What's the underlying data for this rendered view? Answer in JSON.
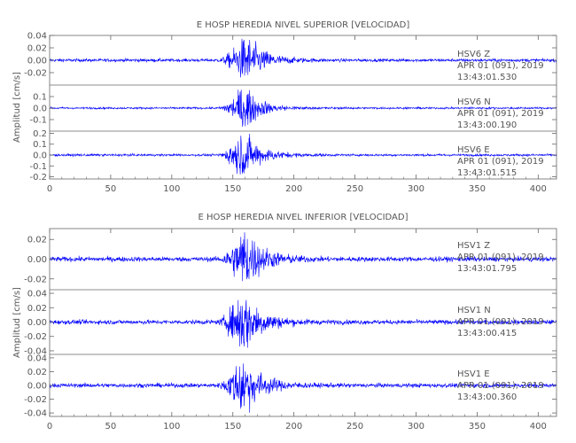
{
  "chart_data": [
    {
      "type": "line",
      "title": "E HOSP HEREDIA NIVEL SUPERIOR [VELOCIDAD]",
      "ylabel": "Amplitud [cm/s]",
      "xlabel": "",
      "xlim": [
        0,
        415
      ],
      "x_ticks": [
        "0",
        "50",
        "100",
        "150",
        "200",
        "250",
        "300",
        "350",
        "400"
      ],
      "line_color": "#0000ff",
      "series": [
        {
          "name": "Z",
          "lines": [
            "HSV6   Z",
            "APR 01 (091), 2019",
            "13:43:01.530"
          ],
          "ylim": [
            -0.04,
            0.04
          ],
          "y_ticks": [
            "0.04",
            "0.02",
            "0.00",
            "-0.02"
          ],
          "peak": 0.036,
          "noise": 0.0012,
          "onset": 137,
          "peak_time": 161
        },
        {
          "name": "N",
          "lines": [
            "HSV6   N",
            "APR 01 (091), 2019",
            "13:43:00.190"
          ],
          "ylim": [
            -0.2,
            0.2
          ],
          "y_ticks": [
            "0.1",
            "0.0",
            "-0.1"
          ],
          "peak": 0.17,
          "noise": 0.004,
          "onset": 137,
          "peak_time": 158
        },
        {
          "name": "E",
          "lines": [
            "HSV6   E",
            "APR 01 (091), 2019",
            "13:43:01.515"
          ],
          "ylim": [
            -0.22,
            0.22
          ],
          "y_ticks": [
            "0.2",
            "0.1",
            "0.0",
            "-0.1",
            "-0.2"
          ],
          "peak": 0.2,
          "noise": 0.005,
          "onset": 137,
          "peak_time": 158
        }
      ]
    },
    {
      "type": "line",
      "title": "E HOSP HEREDIA NIVEL INFERIOR [VELOCIDAD]",
      "ylabel": "Amplitud [cm/s]",
      "xlabel": "",
      "xlim": [
        0,
        415
      ],
      "x_ticks": [
        "0",
        "50",
        "100",
        "150",
        "200",
        "250",
        "300",
        "350",
        "400"
      ],
      "line_color": "#0000ff",
      "series": [
        {
          "name": "Z",
          "lines": [
            "HSV1   Z",
            "APR 01 (091), 2019",
            "13:43:01.795"
          ],
          "ylim": [
            -0.031,
            0.031
          ],
          "y_ticks": [
            "0.02",
            "0.00",
            "-0.02"
          ],
          "peak": 0.029,
          "noise": 0.0012,
          "onset": 137,
          "peak_time": 160
        },
        {
          "name": "N",
          "lines": [
            "HSV1   N",
            "APR 01 (091), 2019",
            "13:43:00.415"
          ],
          "ylim": [
            -0.045,
            0.045
          ],
          "y_ticks": [
            "0.04",
            "0.02",
            "0.00",
            "-0.02",
            "-0.04"
          ],
          "peak": 0.042,
          "noise": 0.0015,
          "onset": 137,
          "peak_time": 158
        },
        {
          "name": "E",
          "lines": [
            "HSV1   E",
            "APR 01 (091), 2019",
            "13:43:00.360"
          ],
          "ylim": [
            -0.045,
            0.045
          ],
          "y_ticks": [
            "0.04",
            "0.02",
            "0.00",
            "-0.02",
            "-0.04"
          ],
          "peak": 0.04,
          "noise": 0.0015,
          "onset": 137,
          "peak_time": 158
        }
      ]
    }
  ]
}
